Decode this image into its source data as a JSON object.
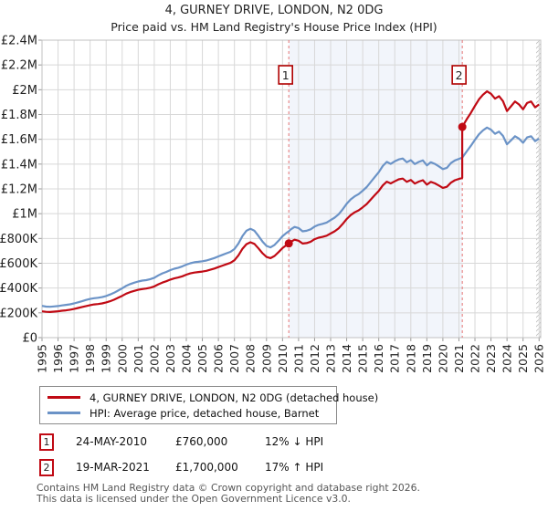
{
  "page": {
    "title": "4, GURNEY DRIVE, LONDON, N2 0DG",
    "subtitle": "Price paid vs. HM Land Registry's House Price Index (HPI)"
  },
  "colors": {
    "property_line": "#c00a14",
    "hpi_line": "#6b93c7",
    "sale_dashed_line": "#e57373",
    "marker_box_border": "#b00000",
    "shaded_span": "#f2f5fb",
    "grid": "#d8d8d8",
    "plot_border": "#c0c0c0",
    "axis_text": "#222222",
    "footer_text": "#555555"
  },
  "legend": {
    "items": [
      {
        "label": "4, GURNEY DRIVE, LONDON, N2 0DG (detached house)",
        "color": "#c00a14"
      },
      {
        "label": "HPI: Average price, detached house, Barnet",
        "color": "#6b93c7"
      }
    ]
  },
  "events": [
    {
      "num": "1",
      "date": "24-MAY-2010",
      "price": "£760,000",
      "hpi": "12% ↓ HPI"
    },
    {
      "num": "2",
      "date": "19-MAR-2021",
      "price": "£1,700,000",
      "hpi": "17% ↑ HPI"
    }
  ],
  "footer": {
    "line1": "Contains HM Land Registry data © Crown copyright and database right 2026.",
    "line2": "This data is licensed under the Open Government Licence v3.0."
  },
  "chart_data": {
    "type": "line",
    "title": "4, GURNEY DRIVE, LONDON, N2 0DG",
    "subtitle": "Price paid vs. HM Land Registry's House Price Index (HPI)",
    "y_units": "GBP thousands",
    "xlim": [
      1995,
      2026.1
    ],
    "ylim": [
      0,
      2400
    ],
    "grid": true,
    "legend_position": "bottom",
    "x_ticks": [
      1995,
      1996,
      1997,
      1998,
      1999,
      2000,
      2001,
      2002,
      2003,
      2004,
      2005,
      2006,
      2007,
      2008,
      2009,
      2010,
      2011,
      2012,
      2013,
      2014,
      2015,
      2016,
      2017,
      2018,
      2019,
      2020,
      2021,
      2022,
      2023,
      2024,
      2025,
      2026
    ],
    "y_ticks": [
      {
        "v": 0,
        "label": "£0"
      },
      {
        "v": 200,
        "label": "£200K"
      },
      {
        "v": 400,
        "label": "£400K"
      },
      {
        "v": 600,
        "label": "£600K"
      },
      {
        "v": 800,
        "label": "£800K"
      },
      {
        "v": 1000,
        "label": "£1M"
      },
      {
        "v": 1200,
        "label": "£1.2M"
      },
      {
        "v": 1400,
        "label": "£1.4M"
      },
      {
        "v": 1600,
        "label": "£1.6M"
      },
      {
        "v": 1800,
        "label": "£1.8M"
      },
      {
        "v": 2000,
        "label": "£2M"
      },
      {
        "v": 2200,
        "label": "£2.2M"
      },
      {
        "v": 2400,
        "label": "£2.4M"
      }
    ],
    "shaded_span": [
      2010.39,
      2021.21
    ],
    "sales": [
      {
        "num": "1",
        "x": 2010.39,
        "y": 760,
        "date": "24-MAY-2010",
        "price_label": "£760,000",
        "vs_hpi": "12% ↓ HPI"
      },
      {
        "num": "2",
        "x": 2021.21,
        "y": 1700,
        "date": "19-MAR-2021",
        "price_label": "£1,700,000",
        "vs_hpi": "17% ↑ HPI"
      }
    ],
    "series": [
      {
        "name": "4, GURNEY DRIVE, LONDON, N2 0DG (detached house)",
        "color": "#c00a14",
        "points": [
          [
            1995,
            212
          ],
          [
            1995.25,
            208
          ],
          [
            1995.5,
            207
          ],
          [
            1995.75,
            210
          ],
          [
            1996,
            213
          ],
          [
            1996.25,
            217
          ],
          [
            1996.5,
            220
          ],
          [
            1996.75,
            225
          ],
          [
            1997,
            231
          ],
          [
            1997.25,
            239
          ],
          [
            1997.5,
            247
          ],
          [
            1997.75,
            255
          ],
          [
            1998,
            262
          ],
          [
            1998.25,
            268
          ],
          [
            1998.5,
            271
          ],
          [
            1998.75,
            276
          ],
          [
            1999,
            284
          ],
          [
            1999.25,
            294
          ],
          [
            1999.5,
            306
          ],
          [
            1999.75,
            322
          ],
          [
            2000,
            337
          ],
          [
            2000.25,
            355
          ],
          [
            2000.5,
            367
          ],
          [
            2000.75,
            377
          ],
          [
            2001,
            386
          ],
          [
            2001.25,
            392
          ],
          [
            2001.5,
            396
          ],
          [
            2001.75,
            403
          ],
          [
            2002,
            413
          ],
          [
            2002.25,
            430
          ],
          [
            2002.5,
            444
          ],
          [
            2002.75,
            455
          ],
          [
            2003,
            468
          ],
          [
            2003.25,
            478
          ],
          [
            2003.5,
            485
          ],
          [
            2003.75,
            495
          ],
          [
            2004,
            508
          ],
          [
            2004.25,
            518
          ],
          [
            2004.5,
            525
          ],
          [
            2004.75,
            529
          ],
          [
            2005,
            533
          ],
          [
            2005.25,
            539
          ],
          [
            2005.5,
            548
          ],
          [
            2005.75,
            557
          ],
          [
            2006,
            569
          ],
          [
            2006.25,
            581
          ],
          [
            2006.5,
            592
          ],
          [
            2006.75,
            603
          ],
          [
            2007,
            624
          ],
          [
            2007.25,
            664
          ],
          [
            2007.5,
            717
          ],
          [
            2007.75,
            754
          ],
          [
            2008,
            769
          ],
          [
            2008.25,
            756
          ],
          [
            2008.5,
            720
          ],
          [
            2008.75,
            681
          ],
          [
            2009,
            651
          ],
          [
            2009.25,
            641
          ],
          [
            2009.5,
            659
          ],
          [
            2009.75,
            690
          ],
          [
            2010,
            722
          ],
          [
            2010.25,
            747
          ],
          [
            2010.39,
            760
          ],
          [
            2010.5,
            772
          ],
          [
            2010.75,
            790
          ],
          [
            2011,
            782
          ],
          [
            2011.25,
            759
          ],
          [
            2011.5,
            763
          ],
          [
            2011.75,
            774
          ],
          [
            2012,
            794
          ],
          [
            2012.25,
            806
          ],
          [
            2012.5,
            813
          ],
          [
            2012.75,
            822
          ],
          [
            2013,
            840
          ],
          [
            2013.25,
            858
          ],
          [
            2013.5,
            882
          ],
          [
            2013.75,
            917
          ],
          [
            2014,
            957
          ],
          [
            2014.25,
            989
          ],
          [
            2014.5,
            1011
          ],
          [
            2014.75,
            1027
          ],
          [
            2015,
            1051
          ],
          [
            2015.25,
            1078
          ],
          [
            2015.5,
            1113
          ],
          [
            2015.75,
            1149
          ],
          [
            2016,
            1184
          ],
          [
            2016.25,
            1228
          ],
          [
            2016.5,
            1258
          ],
          [
            2016.75,
            1244
          ],
          [
            2017,
            1261
          ],
          [
            2017.25,
            1277
          ],
          [
            2017.5,
            1283
          ],
          [
            2017.75,
            1257
          ],
          [
            2018,
            1272
          ],
          [
            2018.25,
            1243
          ],
          [
            2018.5,
            1259
          ],
          [
            2018.75,
            1270
          ],
          [
            2019,
            1234
          ],
          [
            2019.25,
            1257
          ],
          [
            2019.5,
            1245
          ],
          [
            2019.75,
            1227
          ],
          [
            2020,
            1208
          ],
          [
            2020.25,
            1217
          ],
          [
            2020.5,
            1250
          ],
          [
            2020.75,
            1270
          ],
          [
            2021,
            1280
          ],
          [
            2021.21,
            1289
          ],
          [
            2021.21,
            1700
          ],
          [
            2021.5,
            1764
          ],
          [
            2021.75,
            1814
          ],
          [
            2022,
            1869
          ],
          [
            2022.25,
            1922
          ],
          [
            2022.5,
            1960
          ],
          [
            2022.75,
            1987
          ],
          [
            2023,
            1967
          ],
          [
            2023.25,
            1928
          ],
          [
            2023.5,
            1948
          ],
          [
            2023.75,
            1908
          ],
          [
            2024,
            1828
          ],
          [
            2024.25,
            1866
          ],
          [
            2024.5,
            1905
          ],
          [
            2024.75,
            1881
          ],
          [
            2025,
            1842
          ],
          [
            2025.25,
            1893
          ],
          [
            2025.5,
            1905
          ],
          [
            2025.75,
            1858
          ],
          [
            2026,
            1881
          ]
        ]
      },
      {
        "name": "HPI: Average price, detached house, Barnet",
        "color": "#6b93c7",
        "points": [
          [
            1995,
            256
          ],
          [
            1995.25,
            250
          ],
          [
            1995.5,
            249
          ],
          [
            1995.75,
            252
          ],
          [
            1996,
            255
          ],
          [
            1996.25,
            260
          ],
          [
            1996.5,
            264
          ],
          [
            1996.75,
            269
          ],
          [
            1997,
            276
          ],
          [
            1997.25,
            285
          ],
          [
            1997.5,
            294
          ],
          [
            1997.75,
            304
          ],
          [
            1998,
            312
          ],
          [
            1998.25,
            318
          ],
          [
            1998.5,
            322
          ],
          [
            1998.75,
            327
          ],
          [
            1999,
            336
          ],
          [
            1999.25,
            348
          ],
          [
            1999.5,
            362
          ],
          [
            1999.75,
            380
          ],
          [
            2000,
            398
          ],
          [
            2000.25,
            418
          ],
          [
            2000.5,
            432
          ],
          [
            2000.75,
            443
          ],
          [
            2001,
            453
          ],
          [
            2001.25,
            460
          ],
          [
            2001.5,
            464
          ],
          [
            2001.75,
            472
          ],
          [
            2002,
            483
          ],
          [
            2002.25,
            502
          ],
          [
            2002.5,
            518
          ],
          [
            2002.75,
            530
          ],
          [
            2003,
            545
          ],
          [
            2003.25,
            556
          ],
          [
            2003.5,
            564
          ],
          [
            2003.75,
            575
          ],
          [
            2004,
            589
          ],
          [
            2004.25,
            600
          ],
          [
            2004.5,
            608
          ],
          [
            2004.75,
            612
          ],
          [
            2005,
            616
          ],
          [
            2005.25,
            622
          ],
          [
            2005.5,
            632
          ],
          [
            2005.75,
            642
          ],
          [
            2006,
            655
          ],
          [
            2006.25,
            668
          ],
          [
            2006.5,
            680
          ],
          [
            2006.75,
            692
          ],
          [
            2007,
            715
          ],
          [
            2007.25,
            760
          ],
          [
            2007.5,
            820
          ],
          [
            2007.75,
            862
          ],
          [
            2008,
            878
          ],
          [
            2008.25,
            862
          ],
          [
            2008.5,
            820
          ],
          [
            2008.75,
            775
          ],
          [
            2009,
            740
          ],
          [
            2009.25,
            728
          ],
          [
            2009.5,
            748
          ],
          [
            2009.75,
            782
          ],
          [
            2010,
            818
          ],
          [
            2010.25,
            845
          ],
          [
            2010.39,
            858
          ],
          [
            2010.5,
            872
          ],
          [
            2010.75,
            893
          ],
          [
            2011,
            884
          ],
          [
            2011.25,
            858
          ],
          [
            2011.5,
            862
          ],
          [
            2011.75,
            874
          ],
          [
            2012,
            896
          ],
          [
            2012.25,
            910
          ],
          [
            2012.5,
            918
          ],
          [
            2012.75,
            928
          ],
          [
            2013,
            948
          ],
          [
            2013.25,
            968
          ],
          [
            2013.5,
            995
          ],
          [
            2013.75,
            1035
          ],
          [
            2014,
            1080
          ],
          [
            2014.25,
            1115
          ],
          [
            2014.5,
            1140
          ],
          [
            2014.75,
            1158
          ],
          [
            2015,
            1185
          ],
          [
            2015.25,
            1215
          ],
          [
            2015.5,
            1255
          ],
          [
            2015.75,
            1295
          ],
          [
            2016,
            1335
          ],
          [
            2016.25,
            1385
          ],
          [
            2016.5,
            1418
          ],
          [
            2016.75,
            1402
          ],
          [
            2017,
            1422
          ],
          [
            2017.25,
            1438
          ],
          [
            2017.5,
            1445
          ],
          [
            2017.75,
            1415
          ],
          [
            2018,
            1432
          ],
          [
            2018.25,
            1400
          ],
          [
            2018.5,
            1418
          ],
          [
            2018.75,
            1430
          ],
          [
            2019,
            1390
          ],
          [
            2019.25,
            1415
          ],
          [
            2019.5,
            1402
          ],
          [
            2019.75,
            1382
          ],
          [
            2020,
            1360
          ],
          [
            2020.25,
            1370
          ],
          [
            2020.5,
            1408
          ],
          [
            2020.75,
            1430
          ],
          [
            2021,
            1442
          ],
          [
            2021.21,
            1452
          ],
          [
            2021.5,
            1505
          ],
          [
            2021.75,
            1548
          ],
          [
            2022,
            1595
          ],
          [
            2022.25,
            1640
          ],
          [
            2022.5,
            1672
          ],
          [
            2022.75,
            1695
          ],
          [
            2023,
            1678
          ],
          [
            2023.25,
            1645
          ],
          [
            2023.5,
            1662
          ],
          [
            2023.75,
            1628
          ],
          [
            2024,
            1560
          ],
          [
            2024.25,
            1592
          ],
          [
            2024.5,
            1625
          ],
          [
            2024.75,
            1605
          ],
          [
            2025,
            1572
          ],
          [
            2025.25,
            1615
          ],
          [
            2025.5,
            1625
          ],
          [
            2025.75,
            1585
          ],
          [
            2026,
            1605
          ]
        ]
      }
    ]
  }
}
